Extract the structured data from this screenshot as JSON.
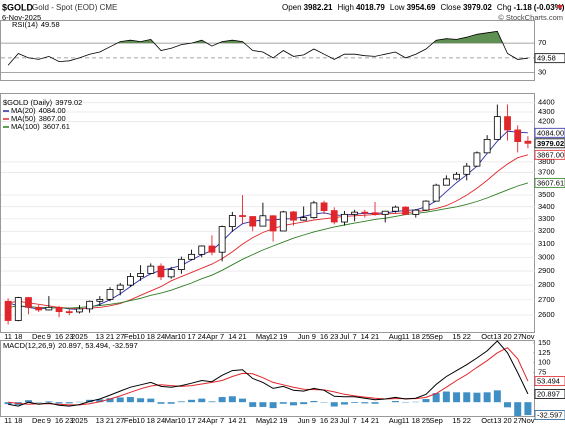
{
  "header": {
    "symbol": "$GOLD",
    "name": "Gold - Spot (EOD) CME",
    "date": "6-Nov-2025",
    "credit": "© StockCharts.com",
    "quote": [
      {
        "label": "Open",
        "value": 3982.21
      },
      {
        "label": "High",
        "value": 4018.79
      },
      {
        "label": "Low",
        "value": 3954.69
      },
      {
        "label": "Close",
        "value": 3979.02
      }
    ],
    "change": {
      "label": "Chg",
      "value": -1.18,
      "percent": {
        "value": -0.03,
        "label": "(-0.03%)"
      }
    }
  },
  "chart_data": [
    {
      "type": "line",
      "title": "RSI(14)",
      "ylim": [
        20,
        100
      ],
      "yticks": [
        30,
        70
      ],
      "midline": 50,
      "overbought": 70,
      "fill_color": "#5f8f52",
      "series": [
        {
          "color": "#000000",
          "values": [
            40,
            56,
            50,
            48,
            52,
            45,
            46,
            50,
            55,
            58,
            65,
            72,
            74,
            72,
            75,
            60,
            63,
            68,
            70,
            74,
            66,
            72,
            74,
            72,
            60,
            58,
            50,
            60,
            52,
            54,
            62,
            55,
            48,
            55,
            55,
            53,
            52,
            55,
            58,
            50,
            55,
            62,
            74,
            76,
            75,
            78,
            82,
            84,
            86,
            56,
            48,
            49.58
          ]
        }
      ]
    },
    {
      "type": "candlestick",
      "title": "$GOLD (Daily)",
      "log_scale": true,
      "grid": true,
      "up_color": "#000000",
      "down_color": "#e0262b",
      "ylim": [
        2493,
        4485
      ],
      "yticks": [
        2600,
        2700,
        2800,
        2900,
        3000,
        3100,
        3200,
        3300,
        3400,
        3500,
        3700,
        3800,
        4200,
        4300,
        4400
      ],
      "categories": [
        "11",
        "18",
        null,
        "Dec",
        "9",
        "16",
        "23",
        "2025",
        null,
        "13",
        "21",
        "27",
        "Feb",
        "10",
        "18",
        "24",
        "Mar",
        "10",
        "17",
        "24",
        "Apr",
        "7",
        "14",
        "21",
        null,
        "May",
        "12",
        "19",
        null,
        "Jun",
        "9",
        "16",
        "23",
        "Jul",
        "7",
        "14",
        "21",
        null,
        "Aug",
        "11",
        "18",
        "25",
        "Sep",
        null,
        "15",
        "22",
        null,
        "Oct",
        "13",
        "20",
        "27",
        "Nov"
      ],
      "open": [
        2690,
        2565,
        2715,
        2650,
        2633,
        2650,
        2622,
        2620,
        2640,
        2690,
        2703,
        2770,
        2800,
        2860,
        2882,
        2935,
        2858,
        2910,
        2985,
        3022,
        3085,
        3038,
        3237,
        3327,
        3319,
        3241,
        3325,
        3202,
        3357,
        3289,
        3310,
        3433,
        3368,
        3274,
        3337,
        3355,
        3350,
        3337,
        3363,
        3397,
        3336,
        3372,
        3448,
        3587,
        3643,
        3685,
        3760,
        3886,
        4018,
        4251,
        4113,
        4000
      ],
      "high": [
        2710,
        2720,
        2720,
        2665,
        2725,
        2660,
        2640,
        2665,
        2695,
        2725,
        2785,
        2815,
        2885,
        2942,
        2955,
        2955,
        2930,
        3005,
        3057,
        3090,
        3168,
        3245,
        3357,
        3500,
        3320,
        3435,
        3330,
        3366,
        3365,
        3403,
        3450,
        3452,
        3395,
        3365,
        3375,
        3375,
        3440,
        3365,
        3410,
        3405,
        3380,
        3455,
        3600,
        3675,
        3705,
        3790,
        3900,
        4060,
        4380,
        4381,
        4160,
        4050
      ],
      "low": [
        2540,
        2560,
        2605,
        2620,
        2630,
        2585,
        2600,
        2610,
        2615,
        2660,
        2690,
        2730,
        2790,
        2830,
        2880,
        2835,
        2845,
        2880,
        2980,
        3000,
        3015,
        2970,
        3195,
        3260,
        3200,
        3240,
        3120,
        3200,
        3245,
        3285,
        3300,
        3340,
        3255,
        3245,
        3280,
        3310,
        3325,
        3270,
        3350,
        3330,
        3310,
        3365,
        3445,
        3585,
        3630,
        3630,
        3755,
        3885,
        4015,
        4005,
        3890,
        3930
      ],
      "close": [
        2565,
        2715,
        2650,
        2633,
        2650,
        2622,
        2620,
        2640,
        2690,
        2703,
        2770,
        2800,
        2860,
        2882,
        2935,
        2858,
        2910,
        2985,
        3022,
        3085,
        3038,
        3237,
        3327,
        3319,
        3241,
        3325,
        3202,
        3357,
        3289,
        3310,
        3433,
        3368,
        3274,
        3337,
        3355,
        3350,
        3337,
        3363,
        3397,
        3336,
        3372,
        3448,
        3587,
        3643,
        3685,
        3760,
        3886,
        4018,
        4251,
        4113,
        3996,
        3979.02
      ],
      "overlays": [
        {
          "name": "MA(20)",
          "color": "#2b2ba6",
          "last_label": "4084.00",
          "values": [
            2680,
            2660,
            2650,
            2640,
            2645,
            2650,
            2640,
            2635,
            2650,
            2670,
            2700,
            2740,
            2790,
            2840,
            2880,
            2905,
            2920,
            2940,
            2980,
            3020,
            3050,
            3120,
            3200,
            3260,
            3280,
            3290,
            3290,
            3300,
            3300,
            3320,
            3340,
            3350,
            3330,
            3330,
            3340,
            3345,
            3345,
            3350,
            3360,
            3370,
            3375,
            3400,
            3450,
            3530,
            3610,
            3680,
            3760,
            3880,
            4000,
            4100,
            4090,
            4084
          ]
        },
        {
          "name": "MA(50)",
          "color": "#e0262b",
          "last_label": "3867.00",
          "values": [
            2680,
            2690,
            2680,
            2670,
            2660,
            2650,
            2645,
            2640,
            2645,
            2650,
            2660,
            2675,
            2700,
            2730,
            2760,
            2790,
            2830,
            2860,
            2890,
            2920,
            2950,
            2990,
            3040,
            3100,
            3150,
            3190,
            3220,
            3245,
            3260,
            3275,
            3290,
            3300,
            3310,
            3320,
            3325,
            3330,
            3335,
            3340,
            3345,
            3350,
            3360,
            3370,
            3385,
            3410,
            3450,
            3500,
            3560,
            3630,
            3710,
            3780,
            3840,
            3867
          ]
        },
        {
          "name": "MA(100)",
          "color": "#2e7d22",
          "values": [
            2650,
            2660,
            2655,
            2650,
            2648,
            2645,
            2645,
            2650,
            2655,
            2662,
            2670,
            2680,
            2695,
            2710,
            2730,
            2745,
            2765,
            2790,
            2815,
            2845,
            2870,
            2905,
            2945,
            2985,
            3020,
            3055,
            3085,
            3115,
            3145,
            3170,
            3195,
            3215,
            3235,
            3250,
            3265,
            3280,
            3295,
            3305,
            3320,
            3335,
            3345,
            3355,
            3370,
            3385,
            3400,
            3420,
            3445,
            3475,
            3510,
            3545,
            3580,
            3607.61
          ]
        }
      ]
    },
    {
      "type": "macd",
      "title": "MACD(12,26,9)",
      "legend_values": "20.897, 53.494, -32.597",
      "ylim": [
        -35,
        155
      ],
      "yticks": [
        75,
        100,
        125,
        150
      ],
      "series": [
        {
          "kind": "bar",
          "color": "#3f8fc5",
          "values": [
            -5,
            -7,
            5,
            -1,
            2,
            -3,
            -3,
            1,
            6,
            7,
            10,
            12,
            13,
            10,
            9,
            -4,
            -4,
            2,
            6,
            9,
            2,
            13,
            15,
            9,
            -12,
            -12,
            -15,
            -4,
            -8,
            -5,
            3,
            -1,
            -11,
            -6,
            -2,
            -3,
            -4,
            0,
            3,
            -1,
            1,
            8,
            23,
            27,
            25,
            25,
            24,
            25,
            30,
            -13,
            -35,
            -32.597
          ]
        },
        {
          "kind": "line",
          "color": "#e0262b",
          "values": [
            0,
            -3,
            -5,
            -4,
            -4,
            -5,
            -7,
            -7,
            -4,
            1,
            8,
            16,
            25,
            34,
            41,
            44,
            42,
            40,
            42,
            46,
            50,
            55,
            65,
            73,
            72,
            62,
            50,
            44,
            38,
            33,
            32,
            31,
            26,
            20,
            16,
            13,
            10,
            8,
            9,
            9,
            9,
            12,
            22,
            38,
            55,
            70,
            88,
            105,
            125,
            138,
            110,
            53.494
          ]
        },
        {
          "kind": "line",
          "color": "#000000",
          "values": [
            -5,
            -10,
            0,
            -5,
            -2,
            -8,
            -10,
            -6,
            2,
            8,
            18,
            28,
            38,
            44,
            50,
            40,
            38,
            42,
            48,
            55,
            52,
            68,
            80,
            82,
            60,
            50,
            35,
            40,
            30,
            28,
            35,
            30,
            15,
            14,
            14,
            10,
            6,
            8,
            12,
            8,
            10,
            20,
            45,
            65,
            80,
            95,
            112,
            130,
            155,
            125,
            75,
            20.897
          ]
        }
      ]
    }
  ]
}
